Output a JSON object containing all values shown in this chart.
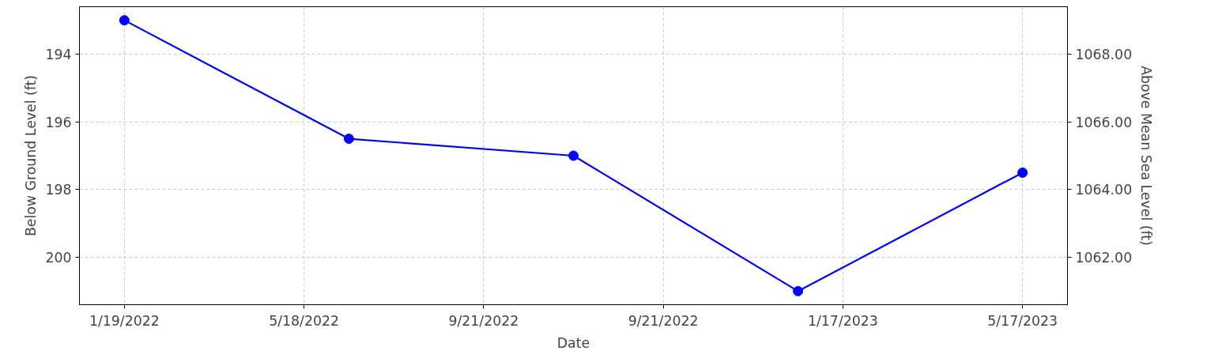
{
  "chart_data": {
    "type": "line",
    "categories": [
      null,
      null,
      null,
      null,
      null
    ],
    "series": [
      {
        "color": "#0000ff",
        "values": [
          193.0,
          196.5,
          197.0,
          201.0,
          197.5
        ]
      }
    ],
    "xlabel": "Date",
    "ylabel": "Below Ground Level (ft)",
    "y2label": "Above Mean Sea Level (ft)",
    "annotations": [
      "1/19/2022",
      "5/18/2022",
      "9/21/2022",
      "9/21/2022",
      "1/17/2023",
      "5/17/2023"
    ],
    "ylim": [
      201.4,
      192.6
    ],
    "yticks": [
      194,
      196,
      198,
      200
    ],
    "y2lim": [
      1060.6,
      1069.4
    ],
    "y2ticks": [
      {
        "value": 1062,
        "label": "1062.00"
      },
      {
        "value": 1064,
        "label": "1064.00"
      },
      {
        "value": 1066,
        "label": "1066.00"
      },
      {
        "value": 1068,
        "label": "1068.00"
      }
    ],
    "grid": true,
    "marker": "circle",
    "line_style": "solid"
  }
}
